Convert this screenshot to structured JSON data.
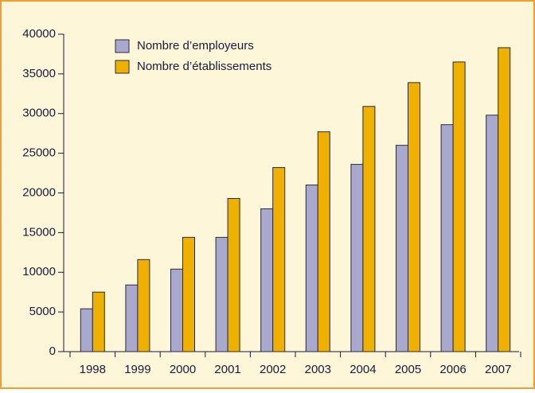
{
  "chart_data": {
    "type": "bar",
    "categories": [
      "1998",
      "1999",
      "2000",
      "2001",
      "2002",
      "2003",
      "2004",
      "2005",
      "2006",
      "2007"
    ],
    "series": [
      {
        "name": "Nombre d’employeurs",
        "color": "#a9a9cd",
        "values": [
          5400,
          8400,
          10400,
          14400,
          18000,
          21000,
          23600,
          26000,
          28600,
          29800
        ]
      },
      {
        "name": "Nombre d’établissements",
        "color": "#f0b000",
        "values": [
          7500,
          11600,
          14400,
          19300,
          23200,
          27700,
          30900,
          33900,
          36500,
          38300
        ]
      }
    ],
    "ylim": [
      0,
      40000
    ],
    "yticks": [
      0,
      5000,
      10000,
      15000,
      20000,
      25000,
      30000,
      35000,
      40000
    ],
    "legend": "upper left",
    "grid": false
  }
}
